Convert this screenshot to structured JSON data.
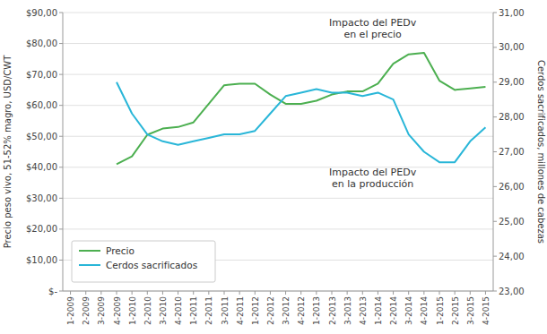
{
  "chart_data": {
    "type": "line",
    "categories": [
      "1-2009",
      "2-2009",
      "3-2009",
      "4-2009",
      "1-2010",
      "2-2010",
      "3-2010",
      "4-2010",
      "1-2011",
      "2-2011",
      "3-2011",
      "4-2011",
      "1-2012",
      "2-2012",
      "3-2012",
      "4-2012",
      "1-2013",
      "2-2013",
      "3-2013",
      "4-2013",
      "1-2014",
      "2-2014",
      "3-2014",
      "4-2014",
      "1-2015",
      "2-2015",
      "3-2015",
      "4-2015"
    ],
    "series": [
      {
        "name": "Precio",
        "color": "#4CAF50",
        "values": [
          null,
          null,
          null,
          41.0,
          43.5,
          50.5,
          52.5,
          53.0,
          54.5,
          60.5,
          66.5,
          67.0,
          67.0,
          63.5,
          60.5,
          60.5,
          61.5,
          63.5,
          64.5,
          64.5,
          67.0,
          73.5,
          76.5,
          77.0,
          68.0,
          65.0,
          65.5,
          66.0
        ]
      },
      {
        "name": "Cerdos sacrificados",
        "color": "#29B6D8",
        "axis": "y2",
        "values": [
          null,
          null,
          null,
          29.0,
          28.1,
          27.5,
          27.3,
          27.2,
          27.3,
          27.4,
          27.5,
          27.5,
          27.6,
          28.1,
          28.6,
          28.7,
          28.8,
          28.7,
          28.7,
          28.6,
          28.7,
          28.5,
          27.5,
          27.0,
          26.7,
          26.7,
          27.3,
          27.7
        ]
      }
    ],
    "ylabel": "Precio peso vivo, 51-52% magro, USD/CWT",
    "y2label": "Cerdos sacrificados, millones de cabezas",
    "ylim": [
      0,
      90
    ],
    "yticks": [
      {
        "value": 0,
        "label": "$-"
      },
      {
        "value": 10,
        "label": "$10,00"
      },
      {
        "value": 20,
        "label": "$20,00"
      },
      {
        "value": 30,
        "label": "$30,00"
      },
      {
        "value": 40,
        "label": "$40,00"
      },
      {
        "value": 50,
        "label": "$50,00"
      },
      {
        "value": 60,
        "label": "$60,00"
      },
      {
        "value": 70,
        "label": "$70,00"
      },
      {
        "value": 80,
        "label": "$80,00"
      },
      {
        "value": 90,
        "label": "$90,00"
      }
    ],
    "y2lim": [
      23,
      31
    ],
    "y2ticks": [
      {
        "value": 23,
        "label": "23,00"
      },
      {
        "value": 24,
        "label": "24,00"
      },
      {
        "value": 25,
        "label": "25,00"
      },
      {
        "value": 26,
        "label": "26,00"
      },
      {
        "value": 27,
        "label": "27,00"
      },
      {
        "value": 28,
        "label": "28,00"
      },
      {
        "value": 29,
        "label": "29,00"
      },
      {
        "value": 30,
        "label": "30,00"
      },
      {
        "value": 31,
        "label": "31,00"
      }
    ],
    "annotations": [
      "Impacto del PEDv\nen el precio",
      "Impacto del PEDv\nen la producción"
    ],
    "grid": true,
    "legend": "lower left"
  }
}
